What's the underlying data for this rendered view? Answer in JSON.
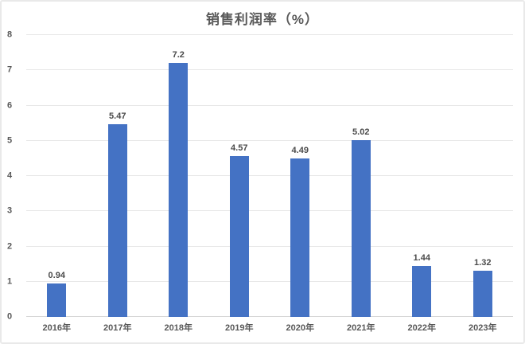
{
  "chart_data": {
    "type": "bar",
    "title": "销售利润率（%）",
    "categories": [
      "2016年",
      "2017年",
      "2018年",
      "2019年",
      "2020年",
      "2021年",
      "2022年",
      "2023年"
    ],
    "values": [
      0.94,
      5.47,
      7.2,
      4.57,
      4.49,
      5.02,
      1.44,
      1.32
    ],
    "value_labels": [
      "0.94",
      "5.47",
      "7.2",
      "4.57",
      "4.49",
      "5.02",
      "1.44",
      "1.32"
    ],
    "xlabel": "",
    "ylabel": "",
    "ylim": [
      0,
      8
    ],
    "yticks": [
      0,
      1,
      2,
      3,
      4,
      5,
      6,
      7,
      8
    ],
    "grid": true,
    "legend": false,
    "legend_position": "none",
    "bar_color": "#4472c4",
    "gridline_color": "#e8e8e8",
    "label_color": "#595959"
  }
}
